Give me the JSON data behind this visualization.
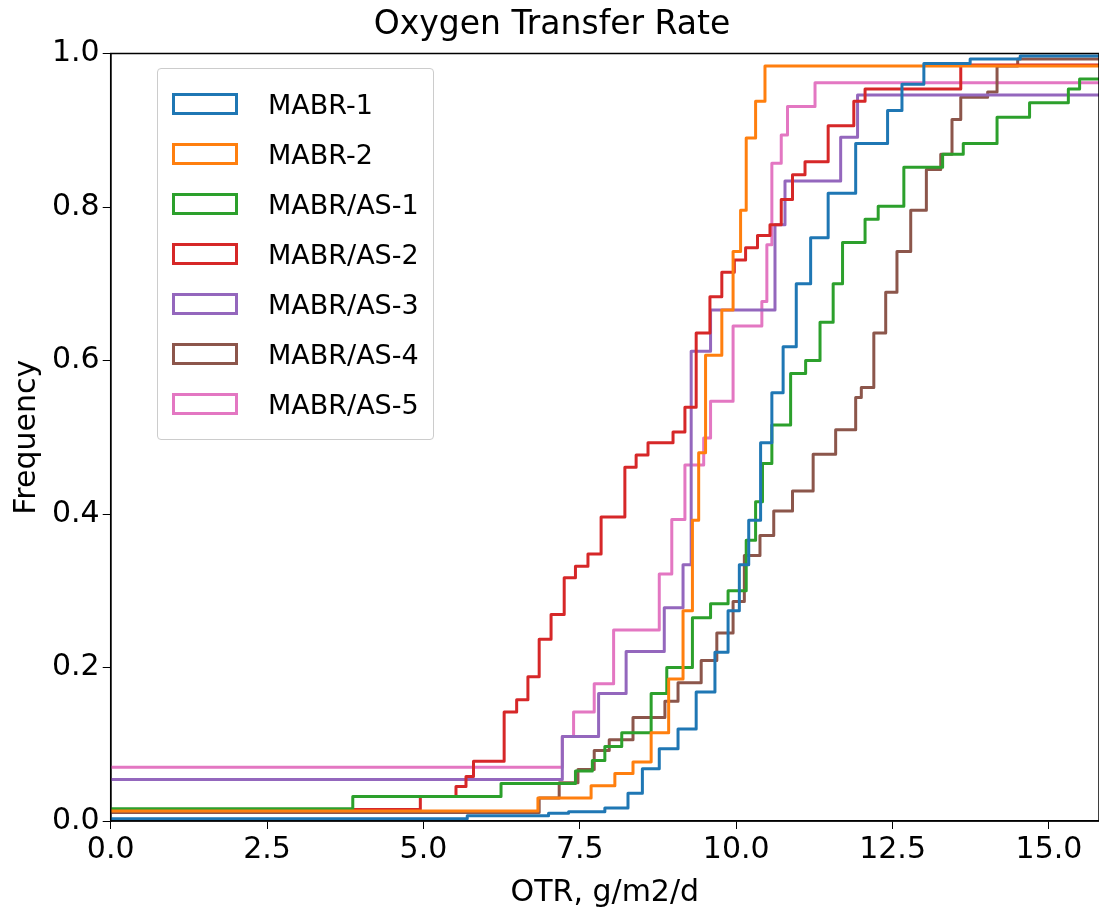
{
  "chart_data": {
    "type": "step",
    "title": "Oxygen Transfer Rate",
    "xlabel": "OTR, g/m2/d",
    "ylabel": "Frequency",
    "legend": "top left",
    "xlim": [
      0,
      15.8
    ],
    "xticks": [
      {
        "value": 0,
        "label": "0.0"
      },
      {
        "value": 2.5,
        "label": "2.5"
      },
      {
        "value": 5,
        "label": "5.0"
      },
      {
        "value": 7.5,
        "label": "7.5"
      },
      {
        "value": 10,
        "label": "10.0"
      },
      {
        "value": 12.5,
        "label": "12.5"
      },
      {
        "value": 15,
        "label": "15.0"
      }
    ],
    "ylim": [
      0,
      1
    ],
    "yticks": [
      {
        "value": 0,
        "label": "0.0"
      },
      {
        "value": 0.2,
        "label": "0.2"
      },
      {
        "value": 0.4,
        "label": "0.4"
      },
      {
        "value": 0.6,
        "label": "0.6"
      },
      {
        "value": 0.8,
        "label": "0.8"
      },
      {
        "value": 1,
        "label": "1.0"
      }
    ],
    "series": [
      {
        "name": "MABR-1",
        "color": "#1f77b4",
        "x": [
          0,
          5.7,
          7.0,
          7.32,
          7.9,
          8.27,
          8.5,
          8.77,
          9.07,
          9.36,
          9.66,
          9.87,
          10.05,
          10.2,
          10.39,
          10.57,
          10.75,
          10.96,
          11.19,
          11.47,
          11.91,
          12.42,
          12.65,
          13.0,
          13.74,
          14.54,
          15.8
        ],
        "values": [
          0.003,
          0.007,
          0.01,
          0.012,
          0.017,
          0.036,
          0.068,
          0.094,
          0.12,
          0.168,
          0.22,
          0.274,
          0.334,
          0.392,
          0.493,
          0.558,
          0.618,
          0.7,
          0.76,
          0.818,
          0.883,
          0.926,
          0.96,
          0.987,
          0.993,
          0.997,
          0.997
        ]
      },
      {
        "name": "MABR-2",
        "color": "#ff7f0e",
        "x": [
          0,
          6.83,
          7.68,
          8.06,
          8.35,
          8.64,
          8.92,
          9.15,
          9.3,
          9.4,
          9.51,
          9.77,
          9.95,
          10.07,
          10.16,
          10.31,
          10.46,
          15.8
        ],
        "values": [
          0.013,
          0.03,
          0.046,
          0.062,
          0.077,
          0.115,
          0.185,
          0.274,
          0.392,
          0.48,
          0.607,
          0.666,
          0.742,
          0.796,
          0.89,
          0.938,
          0.984,
          0.984
        ]
      },
      {
        "name": "MABR/AS-1",
        "color": "#2ca02c",
        "x": [
          0,
          3.87,
          6.24,
          7.43,
          7.7,
          7.9,
          8.17,
          8.64,
          8.89,
          9.3,
          9.59,
          9.87,
          10.16,
          10.31,
          10.42,
          10.57,
          10.87,
          11.11,
          11.34,
          11.55,
          11.7,
          12.06,
          12.27,
          12.68,
          13.3,
          13.63,
          14.17,
          14.69,
          15.31,
          15.49,
          15.8
        ],
        "values": [
          0.016,
          0.032,
          0.049,
          0.065,
          0.079,
          0.097,
          0.115,
          0.166,
          0.2,
          0.265,
          0.283,
          0.3,
          0.366,
          0.416,
          0.466,
          0.516,
          0.583,
          0.6,
          0.65,
          0.7,
          0.754,
          0.784,
          0.801,
          0.852,
          0.869,
          0.883,
          0.917,
          0.936,
          0.954,
          0.967,
          0.967
        ]
      },
      {
        "name": "MABR/AS-2",
        "color": "#d62728",
        "x": [
          0,
          4.95,
          5.52,
          5.68,
          5.8,
          6.29,
          6.49,
          6.67,
          6.85,
          7.04,
          7.25,
          7.43,
          7.63,
          7.84,
          8.22,
          8.4,
          8.59,
          8.99,
          9.18,
          9.36,
          9.58,
          9.77,
          9.97,
          10.15,
          10.34,
          10.54,
          10.72,
          10.9,
          11.1,
          11.47,
          11.88,
          12.06,
          13.59,
          15.8
        ],
        "values": [
          0.015,
          0.032,
          0.045,
          0.058,
          0.078,
          0.142,
          0.158,
          0.188,
          0.237,
          0.269,
          0.317,
          0.332,
          0.348,
          0.396,
          0.461,
          0.477,
          0.493,
          0.507,
          0.539,
          0.636,
          0.683,
          0.715,
          0.731,
          0.747,
          0.763,
          0.777,
          0.81,
          0.842,
          0.859,
          0.906,
          0.938,
          0.954,
          0.985,
          0.985
        ]
      },
      {
        "name": "MABR/AS-3",
        "color": "#9467bd",
        "x": [
          0,
          7.22,
          7.8,
          8.24,
          8.85,
          9.15,
          9.28,
          9.59,
          10.62,
          10.78,
          11.67,
          11.94,
          15.8
        ],
        "values": [
          0.054,
          0.11,
          0.166,
          0.221,
          0.278,
          0.334,
          0.612,
          0.666,
          0.777,
          0.834,
          0.891,
          0.946,
          0.946
        ]
      },
      {
        "name": "MABR/AS-4",
        "color": "#8c564b",
        "x": [
          0,
          6.85,
          7.17,
          7.47,
          7.73,
          7.97,
          8.35,
          8.86,
          9.07,
          9.44,
          9.69,
          9.95,
          10.13,
          10.38,
          10.6,
          10.9,
          11.23,
          11.59,
          11.91,
          12.0,
          12.2,
          12.39,
          12.57,
          12.79,
          13.04,
          13.27,
          13.45,
          13.59,
          14.02,
          14.17,
          14.5,
          15.8
        ],
        "values": [
          0.011,
          0.03,
          0.05,
          0.067,
          0.092,
          0.106,
          0.135,
          0.156,
          0.18,
          0.209,
          0.245,
          0.286,
          0.346,
          0.372,
          0.404,
          0.43,
          0.478,
          0.51,
          0.552,
          0.565,
          0.636,
          0.689,
          0.742,
          0.796,
          0.849,
          0.869,
          0.914,
          0.943,
          0.95,
          0.984,
          0.993,
          0.993
        ]
      },
      {
        "name": "MABR/AS-5",
        "color": "#e377c2",
        "x": [
          0,
          7.22,
          7.4,
          7.73,
          8.04,
          8.77,
          8.97,
          9.18,
          9.48,
          9.59,
          9.95,
          10.41,
          10.49,
          10.57,
          10.72,
          10.82,
          11.26,
          15.8
        ],
        "values": [
          0.07,
          0.11,
          0.142,
          0.179,
          0.249,
          0.322,
          0.393,
          0.464,
          0.499,
          0.547,
          0.645,
          0.677,
          0.751,
          0.857,
          0.894,
          0.931,
          0.962,
          0.962
        ]
      }
    ]
  }
}
